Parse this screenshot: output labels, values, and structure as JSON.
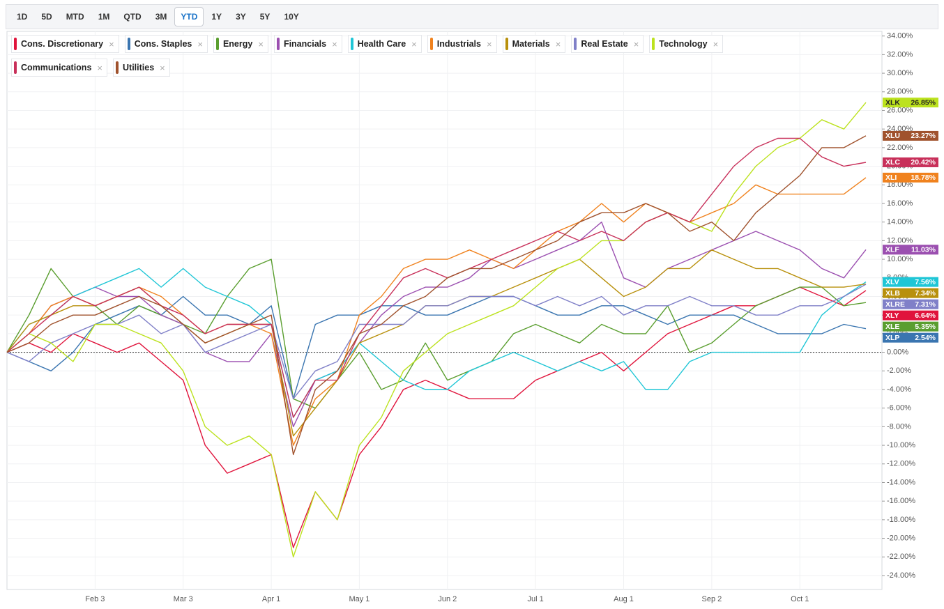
{
  "range_buttons": [
    "1D",
    "5D",
    "MTD",
    "1M",
    "QTD",
    "3M",
    "YTD",
    "1Y",
    "3Y",
    "5Y",
    "10Y"
  ],
  "active_range": "YTD",
  "chart_data": {
    "type": "line",
    "categories": [
      null,
      null,
      null,
      null,
      "Feb 3",
      null,
      null,
      null,
      "Mar 3",
      null,
      null,
      null,
      "Apr 1",
      null,
      null,
      null,
      "May 1",
      null,
      null,
      null,
      "Jun 2",
      null,
      null,
      null,
      "Jul 1",
      null,
      null,
      null,
      "Aug 1",
      null,
      null,
      null,
      "Sep 2",
      null,
      null,
      null,
      "Oct 1",
      null,
      null,
      null
    ],
    "ylim": [
      -25.5,
      34.5
    ],
    "yticks": [
      {
        "value": 34,
        "label": "34.00%"
      },
      {
        "value": 32,
        "label": "32.00%"
      },
      {
        "value": 30,
        "label": "30.00%"
      },
      {
        "value": 28,
        "label": "28.00%"
      },
      {
        "value": 26,
        "label": "26.00%"
      },
      {
        "value": 24,
        "label": "24.00%"
      },
      {
        "value": 22,
        "label": "22.00%"
      },
      {
        "value": 20,
        "label": "20.00%"
      },
      {
        "value": 18,
        "label": "18.00%"
      },
      {
        "value": 16,
        "label": "16.00%"
      },
      {
        "value": 14,
        "label": "14.00%"
      },
      {
        "value": 12,
        "label": "12.00%"
      },
      {
        "value": 10,
        "label": "10.00%"
      },
      {
        "value": 8,
        "label": "8.00%"
      },
      {
        "value": 6,
        "label": "6.00%"
      },
      {
        "value": 4,
        "label": "4.00%"
      },
      {
        "value": 2,
        "label": "2.00%"
      },
      {
        "value": 0,
        "label": "0.00%"
      },
      {
        "value": -2,
        "label": "-2.00%"
      },
      {
        "value": -4,
        "label": "-4.00%"
      },
      {
        "value": -6,
        "label": "-6.00%"
      },
      {
        "value": -8,
        "label": "-8.00%"
      },
      {
        "value": -10,
        "label": "-10.00%"
      },
      {
        "value": -12,
        "label": "-12.00%"
      },
      {
        "value": -14,
        "label": "-14.00%"
      },
      {
        "value": -16,
        "label": "-16.00%"
      },
      {
        "value": -18,
        "label": "-18.00%"
      },
      {
        "value": -20,
        "label": "-20.00%"
      },
      {
        "value": -22,
        "label": "-22.00%"
      },
      {
        "value": -24,
        "label": "-24.00%"
      }
    ],
    "grid": true,
    "series": [
      {
        "name": "Cons. Discretionary",
        "ticker": "XLY",
        "end_label": "6.64%",
        "color": "#e0143c",
        "values": [
          0,
          1,
          0,
          2,
          1,
          0,
          1,
          -1,
          -3,
          -10,
          -13,
          -12,
          -11,
          -21,
          -15,
          -18,
          -11,
          -8,
          -4,
          -3,
          -4,
          -5,
          -5,
          -5,
          -3,
          -2,
          -1,
          0,
          -2,
          0,
          2,
          3,
          4,
          5,
          5,
          6,
          7,
          6,
          5,
          6.64
        ]
      },
      {
        "name": "Cons. Staples",
        "ticker": "XLP",
        "end_label": "2.54%",
        "color": "#3a75b0",
        "values": [
          0,
          -1,
          -2,
          0,
          3,
          4,
          5,
          4,
          6,
          4,
          4,
          3,
          5,
          -5,
          3,
          4,
          4,
          5,
          5,
          4,
          4,
          5,
          6,
          6,
          5,
          4,
          4,
          5,
          5,
          4,
          3,
          4,
          4,
          4,
          3,
          2,
          2,
          2,
          3,
          2.54
        ]
      },
      {
        "name": "Energy",
        "ticker": "XLE",
        "end_label": "5.35%",
        "color": "#5a9e2f",
        "values": [
          0,
          4,
          9,
          6,
          5,
          3,
          5,
          4,
          3,
          2,
          6,
          9,
          10,
          -5,
          -6,
          -3,
          0,
          -4,
          -3,
          1,
          -3,
          -2,
          -1,
          2,
          3,
          2,
          1,
          3,
          2,
          2,
          5,
          0,
          1,
          3,
          5,
          6,
          7,
          7,
          5,
          5.35
        ]
      },
      {
        "name": "Financials",
        "ticker": "XLF",
        "end_label": "11.03%",
        "color": "#9b4fb0",
        "values": [
          0,
          2,
          5,
          6,
          7,
          6,
          6,
          4,
          3,
          0,
          -1,
          -1,
          2,
          -8,
          -3,
          -2,
          1,
          4,
          6,
          7,
          7,
          8,
          10,
          9,
          10,
          11,
          12,
          14,
          8,
          7,
          9,
          10,
          11,
          12,
          13,
          12,
          11,
          9,
          8,
          11.03
        ]
      },
      {
        "name": "Health Care",
        "ticker": "XLV",
        "end_label": "7.56%",
        "color": "#1fc6d6",
        "values": [
          0,
          3,
          4,
          6,
          7,
          8,
          9,
          7,
          9,
          7,
          6,
          5,
          3,
          -7,
          -3,
          -2,
          1,
          -1,
          -3,
          -4,
          -4,
          -2,
          -1,
          0,
          -1,
          -2,
          -1,
          -2,
          -1,
          -4,
          -4,
          -1,
          0,
          0,
          0,
          0,
          0,
          4,
          6,
          7.56
        ]
      },
      {
        "name": "Industrials",
        "ticker": "XLI",
        "end_label": "18.78%",
        "color": "#f0821e",
        "values": [
          0,
          2,
          5,
          6,
          5,
          6,
          7,
          6,
          4,
          2,
          3,
          3,
          2,
          -10,
          -5,
          -3,
          4,
          6,
          9,
          10,
          10,
          11,
          10,
          9,
          11,
          13,
          14,
          16,
          14,
          16,
          15,
          14,
          15,
          16,
          18,
          17,
          17,
          17,
          17,
          18.78
        ]
      },
      {
        "name": "Materials",
        "ticker": "XLB",
        "end_label": "7.34%",
        "color": "#b8900c",
        "values": [
          0,
          3,
          4,
          5,
          5,
          6,
          7,
          5,
          3,
          1,
          2,
          3,
          3,
          -9,
          -6,
          -3,
          1,
          2,
          3,
          5,
          5,
          6,
          6,
          7,
          8,
          9,
          10,
          8,
          6,
          7,
          9,
          9,
          11,
          10,
          9,
          9,
          8,
          7,
          7,
          7.34
        ]
      },
      {
        "name": "Real Estate",
        "ticker": "XLRE",
        "end_label": "7.31%",
        "color": "#8080c8",
        "values": [
          0,
          -1,
          1,
          2,
          3,
          3,
          4,
          2,
          3,
          0,
          1,
          2,
          3,
          -5,
          -2,
          -1,
          3,
          3,
          3,
          5,
          5,
          6,
          6,
          6,
          5,
          6,
          5,
          6,
          4,
          5,
          5,
          6,
          5,
          5,
          4,
          4,
          5,
          5,
          6,
          7.31
        ]
      },
      {
        "name": "Technology",
        "ticker": "XLK",
        "end_label": "26.85%",
        "color": "#bce21e",
        "values": [
          0,
          2,
          1,
          -1,
          3,
          3,
          2,
          1,
          -2,
          -8,
          -10,
          -9,
          -11,
          -22,
          -15,
          -18,
          -10,
          -7,
          -2,
          0,
          2,
          3,
          4,
          5,
          7,
          9,
          10,
          12,
          12,
          14,
          15,
          14,
          13,
          17,
          20,
          22,
          23,
          25,
          24,
          26.85
        ]
      },
      {
        "name": "Communications",
        "ticker": "XLC",
        "end_label": "20.42%",
        "color": "#c8305a",
        "values": [
          0,
          2,
          4,
          6,
          5,
          6,
          7,
          5,
          4,
          2,
          3,
          3,
          3,
          -7,
          -3,
          -3,
          2,
          5,
          8,
          9,
          8,
          9,
          10,
          11,
          12,
          13,
          12,
          13,
          12,
          14,
          15,
          14,
          17,
          20,
          22,
          23,
          23,
          21,
          20,
          20.42
        ]
      },
      {
        "name": "Utilities",
        "ticker": "XLU",
        "end_label": "23.27%",
        "color": "#a0522d",
        "values": [
          0,
          1,
          3,
          4,
          4,
          5,
          6,
          5,
          3,
          1,
          2,
          3,
          4,
          -11,
          -4,
          -2,
          2,
          3,
          5,
          6,
          8,
          9,
          9,
          10,
          11,
          12,
          14,
          15,
          15,
          16,
          15,
          13,
          14,
          12,
          15,
          17,
          19,
          22,
          22,
          23.27
        ]
      }
    ]
  }
}
